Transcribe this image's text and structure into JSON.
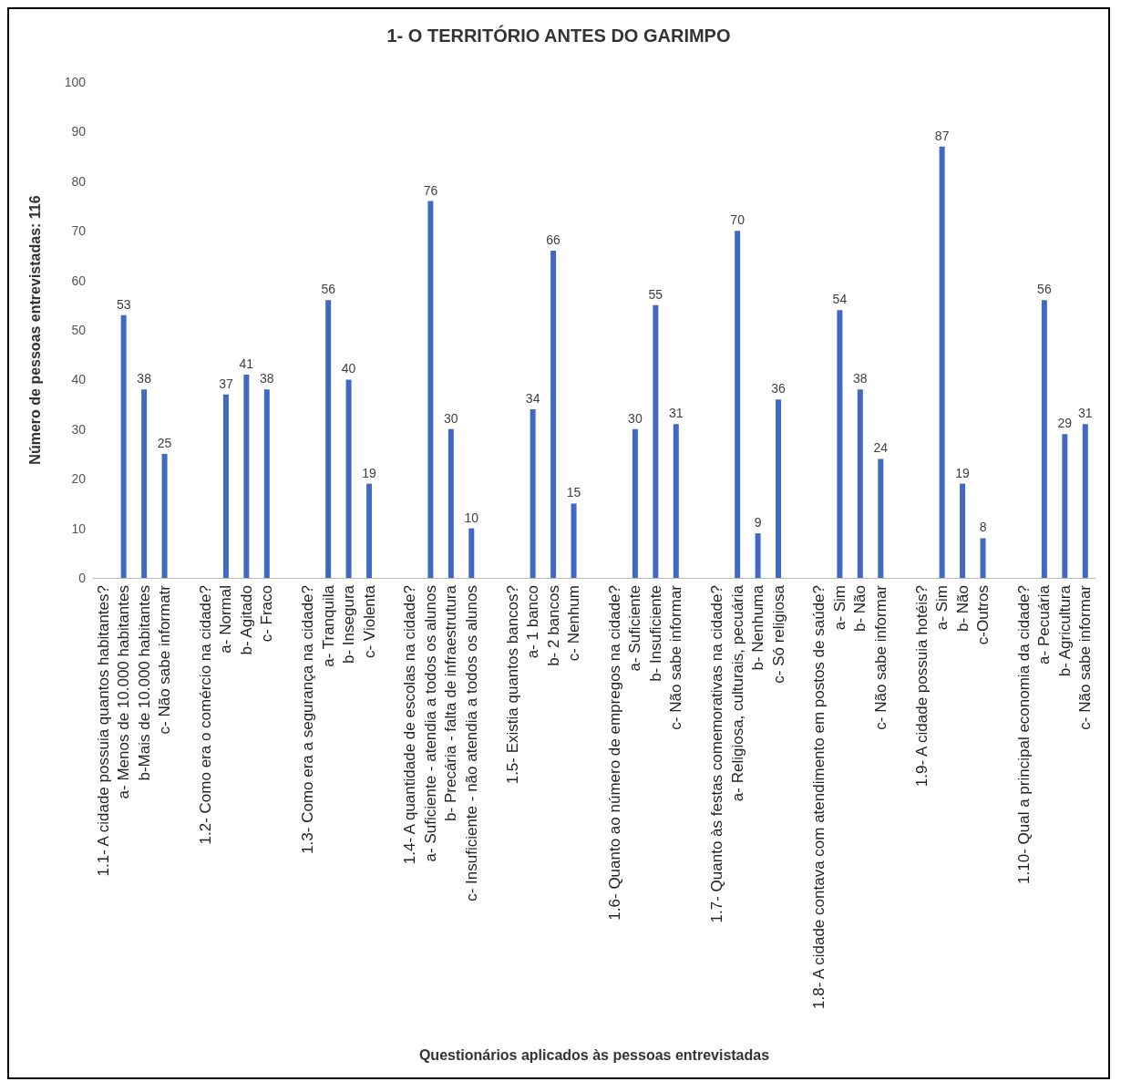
{
  "chart_data": {
    "type": "bar",
    "title": "1- O TERRITÓRIO ANTES DO GARIMPO",
    "xlabel": "Questionários aplicados às pessoas entrevistadas",
    "ylabel": "Número de pessoas entrevistadas: 116",
    "categories": [
      "1.1- A cidade possuia quantos habitantes?",
      "a- Menos de 10.000 habitantes",
      "b-Mais de 10.000 habitantes",
      "c- Não sabe informatr",
      null,
      "1.2- Como era o comércio na cidade?",
      "a- Normal",
      "b- Agitado",
      "c- Fraco",
      null,
      "1.3- Como era a segurança na cidade?",
      "a- Tranquila",
      "b- Insegura",
      "c- Violenta",
      null,
      "1.4- A quantidade de escolas na cidade?",
      "a- Suficiente - atendia a todos os alunos",
      "b- Precária - falta de infraestrutura",
      "c- Insuficiente - não atendia a todos os alunos",
      null,
      "1.5- Existia quantos bancos?",
      "a- 1 banco",
      "b- 2 bancos",
      "c- Nenhum",
      null,
      "1.6- Quanto ao número de empregos na cidade?",
      "a- Suficiente",
      "b- Insuficiente",
      "c- Não sabe informar",
      null,
      "1.7- Quanto às festas comemorativas na cidade?",
      "a- Religiosa, culturais, pecuária",
      "b- Nenhuma",
      "c- Só religiosa",
      null,
      "1.8- A cidade contava com atendimento em postos de saúde?",
      "a- Sim",
      "b- Não",
      "c- Não sabe informar",
      null,
      "1.9- A cidade possuia hotéis?",
      "a- Sim",
      "b- Não",
      "c-Outros",
      null,
      "1.10- Qual a principal economia da cidade?",
      "a- Pecuária",
      "b- Agricultura",
      "c- Não sabe informar"
    ],
    "values": [
      null,
      53,
      38,
      25,
      null,
      null,
      37,
      41,
      38,
      null,
      null,
      56,
      40,
      19,
      null,
      null,
      76,
      30,
      10,
      null,
      null,
      34,
      66,
      15,
      null,
      null,
      30,
      55,
      31,
      null,
      null,
      70,
      9,
      36,
      null,
      null,
      54,
      38,
      24,
      null,
      null,
      87,
      19,
      8,
      null,
      null,
      56,
      29,
      31
    ],
    "color": "#4169c4",
    "ylim": [
      0,
      100
    ],
    "yticks": [
      0,
      10,
      20,
      30,
      40,
      50,
      60,
      70,
      80,
      90,
      100
    ],
    "grid": false,
    "data_labels": true
  }
}
